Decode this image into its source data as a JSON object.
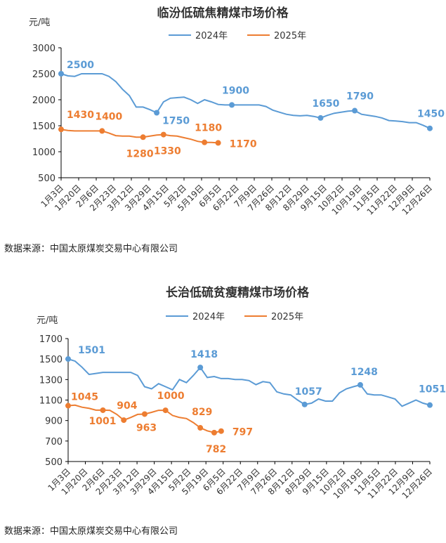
{
  "source": "数据来源：中国太原煤炭交易中心有限公司",
  "colors": {
    "s2024": "#5b9bd5",
    "s2025": "#ed7d31"
  },
  "chart_data": [
    {
      "type": "line",
      "title": "临汾低硫焦精煤市场价格",
      "ylabel": "元/吨",
      "ylim": [
        500,
        3000
      ],
      "yticks": [
        500,
        1000,
        1500,
        2000,
        2500,
        3000
      ],
      "x_tick_labels": [
        "1月3日",
        "1月20日",
        "2月6日",
        "2月23日",
        "3月12日",
        "3月29日",
        "4月15日",
        "5月2日",
        "5月19日",
        "6月5日",
        "6月22日",
        "7月9日",
        "7月26日",
        "8月12日",
        "8月29日",
        "9月15日",
        "10月2日",
        "10月19日",
        "11月5日",
        "11月22日",
        "12月9日",
        "12月26日"
      ],
      "series": [
        {
          "name": "2024年",
          "values": [
            2500,
            2460,
            2450,
            2500,
            2500,
            2500,
            2500,
            2450,
            2350,
            2200,
            2080,
            1860,
            1860,
            1810,
            1750,
            1960,
            2030,
            2040,
            2050,
            2000,
            1930,
            2000,
            1960,
            1910,
            1900,
            1900,
            1900,
            1900,
            1900,
            1900,
            1870,
            1800,
            1760,
            1720,
            1700,
            1690,
            1700,
            1680,
            1650,
            1700,
            1740,
            1760,
            1780,
            1790,
            1720,
            1700,
            1680,
            1650,
            1600,
            1590,
            1580,
            1560,
            1560,
            1510,
            1450
          ]
        },
        {
          "name": "2025年",
          "values": [
            1430,
            1410,
            1400,
            1400,
            1400,
            1400,
            1400,
            1360,
            1310,
            1300,
            1300,
            1280,
            1280,
            1300,
            1320,
            1330,
            1310,
            1300,
            1270,
            1240,
            1200,
            1180,
            1180,
            1170
          ]
        }
      ],
      "annotations": [
        {
          "series": 0,
          "index": 0,
          "text": "2500"
        },
        {
          "series": 0,
          "index": 14,
          "text": "1750"
        },
        {
          "series": 0,
          "index": 25,
          "text": "1900"
        },
        {
          "series": 0,
          "index": 38,
          "text": "1650"
        },
        {
          "series": 0,
          "index": 43,
          "text": "1790"
        },
        {
          "series": 0,
          "index": 54,
          "text": "1450"
        },
        {
          "series": 1,
          "index": 0,
          "text": "1430"
        },
        {
          "series": 1,
          "index": 6,
          "text": "1400"
        },
        {
          "series": 1,
          "index": 12,
          "text": "1280"
        },
        {
          "series": 1,
          "index": 15,
          "text": "1330"
        },
        {
          "series": 1,
          "index": 21,
          "text": "1180"
        },
        {
          "series": 1,
          "index": 23,
          "text": "1170"
        }
      ]
    },
    {
      "type": "line",
      "title": "长治低硫贫瘦精煤市场价格",
      "ylabel": "元/吨",
      "ylim": [
        500,
        1700
      ],
      "yticks": [
        500,
        700,
        900,
        1100,
        1300,
        1500,
        1700
      ],
      "x_tick_labels": [
        "1月3日",
        "1月20日",
        "2月6日",
        "2月23日",
        "3月12日",
        "3月29日",
        "4月15日",
        "5月2日",
        "5月19日",
        "6月5日",
        "6月22日",
        "7月9日",
        "7月26日",
        "8月12日",
        "8月29日",
        "9月15日",
        "10月2日",
        "10月19日",
        "11月5日",
        "11月22日",
        "12月9日",
        "12月26日"
      ],
      "series": [
        {
          "name": "2024年",
          "values": [
            1501,
            1480,
            1420,
            1350,
            1360,
            1370,
            1370,
            1370,
            1370,
            1370,
            1340,
            1230,
            1210,
            1260,
            1230,
            1200,
            1300,
            1270,
            1340,
            1418,
            1320,
            1330,
            1310,
            1310,
            1300,
            1300,
            1290,
            1250,
            1280,
            1270,
            1180,
            1160,
            1150,
            1100,
            1057,
            1070,
            1110,
            1090,
            1090,
            1170,
            1210,
            1230,
            1248,
            1160,
            1150,
            1150,
            1130,
            1110,
            1040,
            1070,
            1100,
            1070,
            1051
          ]
        },
        {
          "name": "2025年",
          "values": [
            1045,
            1050,
            1030,
            1020,
            1001,
            1001,
            1000,
            960,
            904,
            930,
            960,
            963,
            980,
            1000,
            1000,
            950,
            930,
            920,
            880,
            829,
            800,
            782,
            797
          ]
        }
      ],
      "annotations": [
        {
          "series": 0,
          "index": 0,
          "text": "1501"
        },
        {
          "series": 0,
          "index": 19,
          "text": "1418"
        },
        {
          "series": 0,
          "index": 34,
          "text": "1057"
        },
        {
          "series": 0,
          "index": 42,
          "text": "1248"
        },
        {
          "series": 0,
          "index": 52,
          "text": "1051"
        },
        {
          "series": 1,
          "index": 0,
          "text": "1045"
        },
        {
          "series": 1,
          "index": 5,
          "text": "1001"
        },
        {
          "series": 1,
          "index": 8,
          "text": "904"
        },
        {
          "series": 1,
          "index": 11,
          "text": "963"
        },
        {
          "series": 1,
          "index": 14,
          "text": "1000"
        },
        {
          "series": 1,
          "index": 19,
          "text": "829"
        },
        {
          "series": 1,
          "index": 21,
          "text": "782"
        },
        {
          "series": 1,
          "index": 22,
          "text": "797"
        }
      ]
    }
  ]
}
